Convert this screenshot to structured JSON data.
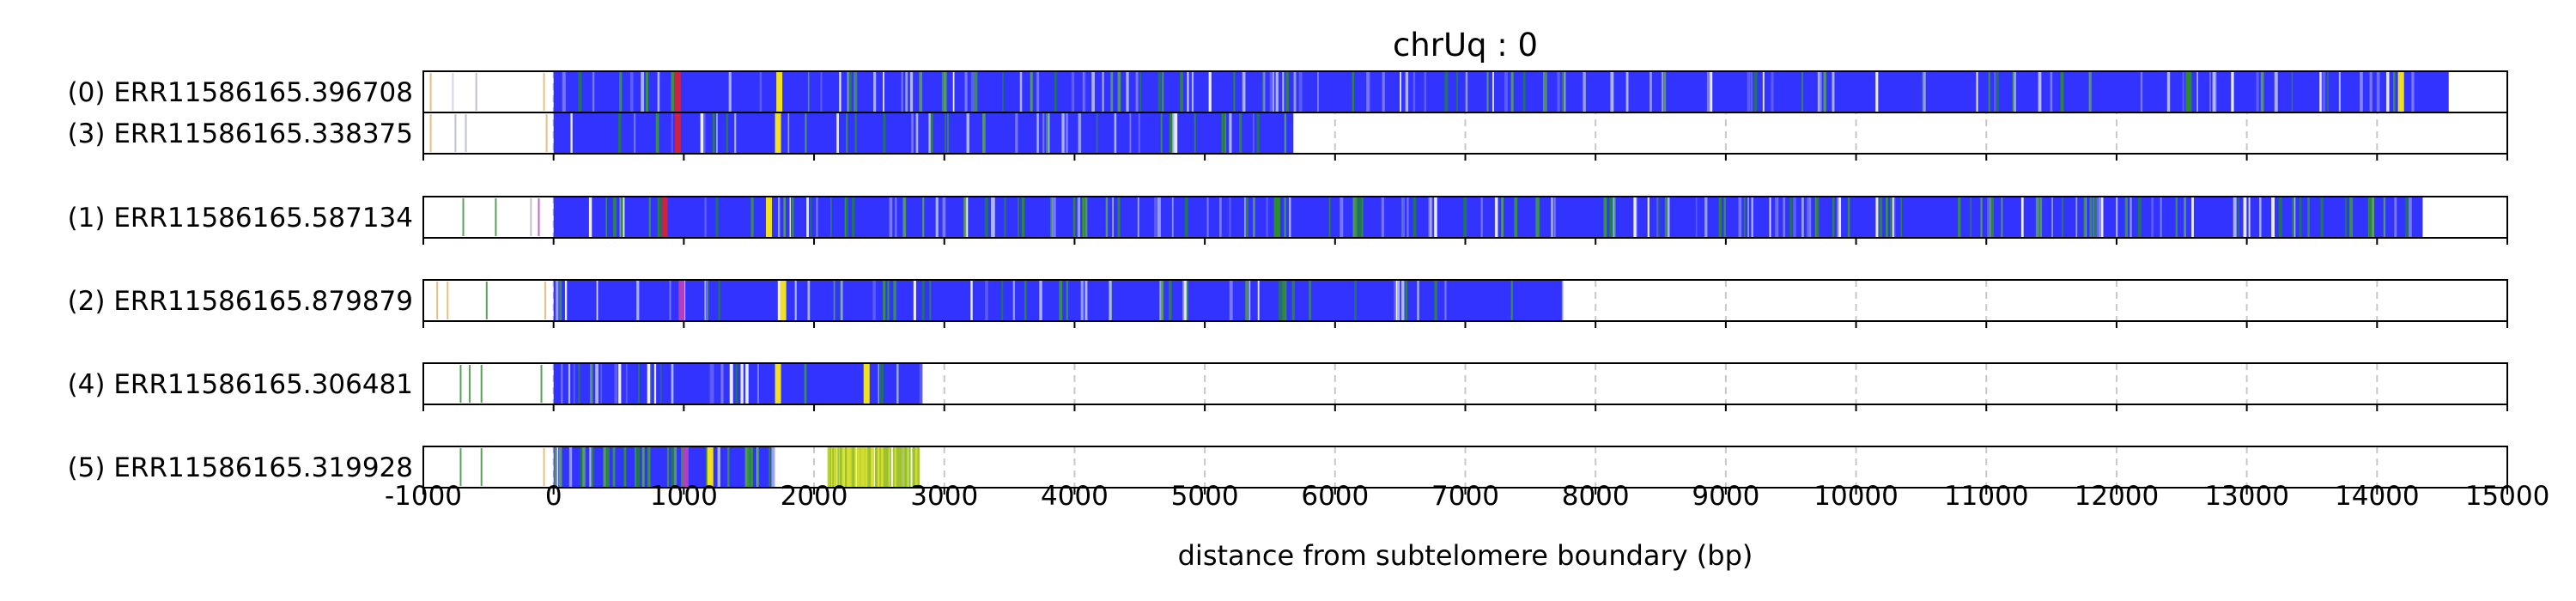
{
  "chart_data": {
    "type": "heatmap",
    "title": "chrUq : 0",
    "xlabel": "distance from subtelomere boundary (bp)",
    "xlim": [
      -1000,
      15000
    ],
    "xticks": [
      -1000,
      0,
      1000,
      2000,
      3000,
      4000,
      5000,
      6000,
      7000,
      8000,
      9000,
      10000,
      11000,
      12000,
      13000,
      14000,
      15000
    ],
    "xtick_labels": [
      "-1000",
      "0",
      "1000",
      "2000",
      "3000",
      "4000",
      "5000",
      "6000",
      "7000",
      "8000",
      "9000",
      "10000",
      "11000",
      "12000",
      "13000",
      "14000",
      "15000"
    ],
    "grid": "vertical dashed",
    "base_color": "#3333ff",
    "accent_colors": [
      "#2e8b2e",
      "#f0e020",
      "#e0b060",
      "#cc2244",
      "#b040c0",
      "#b0c0ff",
      "#ffffff"
    ],
    "groups": [
      {
        "reads": [
          {
            "label": "(0) ERR11586165.396708",
            "start": 0,
            "end": 14550,
            "leading_marks": [
              {
                "x": -950,
                "color": "#e0b060"
              },
              {
                "x": -780,
                "color": "#c8c8e8"
              },
              {
                "x": -600,
                "color": "#b0b0d0"
              },
              {
                "x": -80,
                "color": "#e0b060"
              }
            ],
            "highlights": [
              {
                "x": 950,
                "color": "#cc2244"
              },
              {
                "x": 1730,
                "color": "#f0e020"
              },
              {
                "x": 12550,
                "color": "#2e8b2e"
              },
              {
                "x": 14180,
                "color": "#f0e020"
              }
            ]
          },
          {
            "label": "(3) ERR11586165.338375",
            "start": 0,
            "end": 5680,
            "leading_marks": [
              {
                "x": -950,
                "color": "#e0b060"
              },
              {
                "x": -760,
                "color": "#b0b0d0"
              },
              {
                "x": -680,
                "color": "#b0b0d0"
              },
              {
                "x": -60,
                "color": "#e0b060"
              }
            ],
            "highlights": [
              {
                "x": 950,
                "color": "#cc2244"
              },
              {
                "x": 1720,
                "color": "#f0e020"
              }
            ]
          }
        ]
      },
      {
        "reads": [
          {
            "label": "(1) ERR11586165.587134",
            "start": 0,
            "end": 14350,
            "leading_marks": [
              {
                "x": -700,
                "color": "#2e8b2e"
              },
              {
                "x": -450,
                "color": "#2e8b2e"
              },
              {
                "x": -180,
                "color": "#b0b0d0"
              },
              {
                "x": -120,
                "color": "#b040c0"
              }
            ],
            "highlights": [
              {
                "x": 850,
                "color": "#cc2244"
              },
              {
                "x": 1650,
                "color": "#f0e020"
              },
              {
                "x": 5550,
                "color": "#2e8b2e"
              }
            ]
          }
        ]
      },
      {
        "reads": [
          {
            "label": "(2) ERR11586165.879879",
            "start": 0,
            "end": 7750,
            "leading_marks": [
              {
                "x": -900,
                "color": "#e0b060"
              },
              {
                "x": -820,
                "color": "#e0b060"
              },
              {
                "x": -520,
                "color": "#2e8b2e"
              },
              {
                "x": -70,
                "color": "#e0b060"
              }
            ],
            "highlights": [
              {
                "x": 980,
                "color": "#b040c0"
              },
              {
                "x": 1760,
                "color": "#f0e020"
              }
            ]
          }
        ]
      },
      {
        "reads": [
          {
            "label": "(4) ERR11586165.306481",
            "start": 0,
            "end": 2830,
            "leading_marks": [
              {
                "x": -720,
                "color": "#2e8b2e"
              },
              {
                "x": -650,
                "color": "#2e8b2e"
              },
              {
                "x": -560,
                "color": "#2e8b2e"
              },
              {
                "x": -100,
                "color": "#2e8b2e"
              }
            ],
            "highlights": [
              {
                "x": 1720,
                "color": "#f0e020"
              },
              {
                "x": 2400,
                "color": "#f0e020"
              }
            ]
          }
        ]
      },
      {
        "reads": [
          {
            "label": "(5) ERR11586165.319928",
            "start": 0,
            "end": 1690,
            "leading_marks": [
              {
                "x": -720,
                "color": "#2e8b2e"
              },
              {
                "x": -560,
                "color": "#2e8b2e"
              },
              {
                "x": -80,
                "color": "#e0b060"
              }
            ],
            "highlights": [
              {
                "x": 1010,
                "color": "#b040c0"
              },
              {
                "x": 1200,
                "color": "#f0e020"
              }
            ]
          }
        ]
      }
    ]
  }
}
